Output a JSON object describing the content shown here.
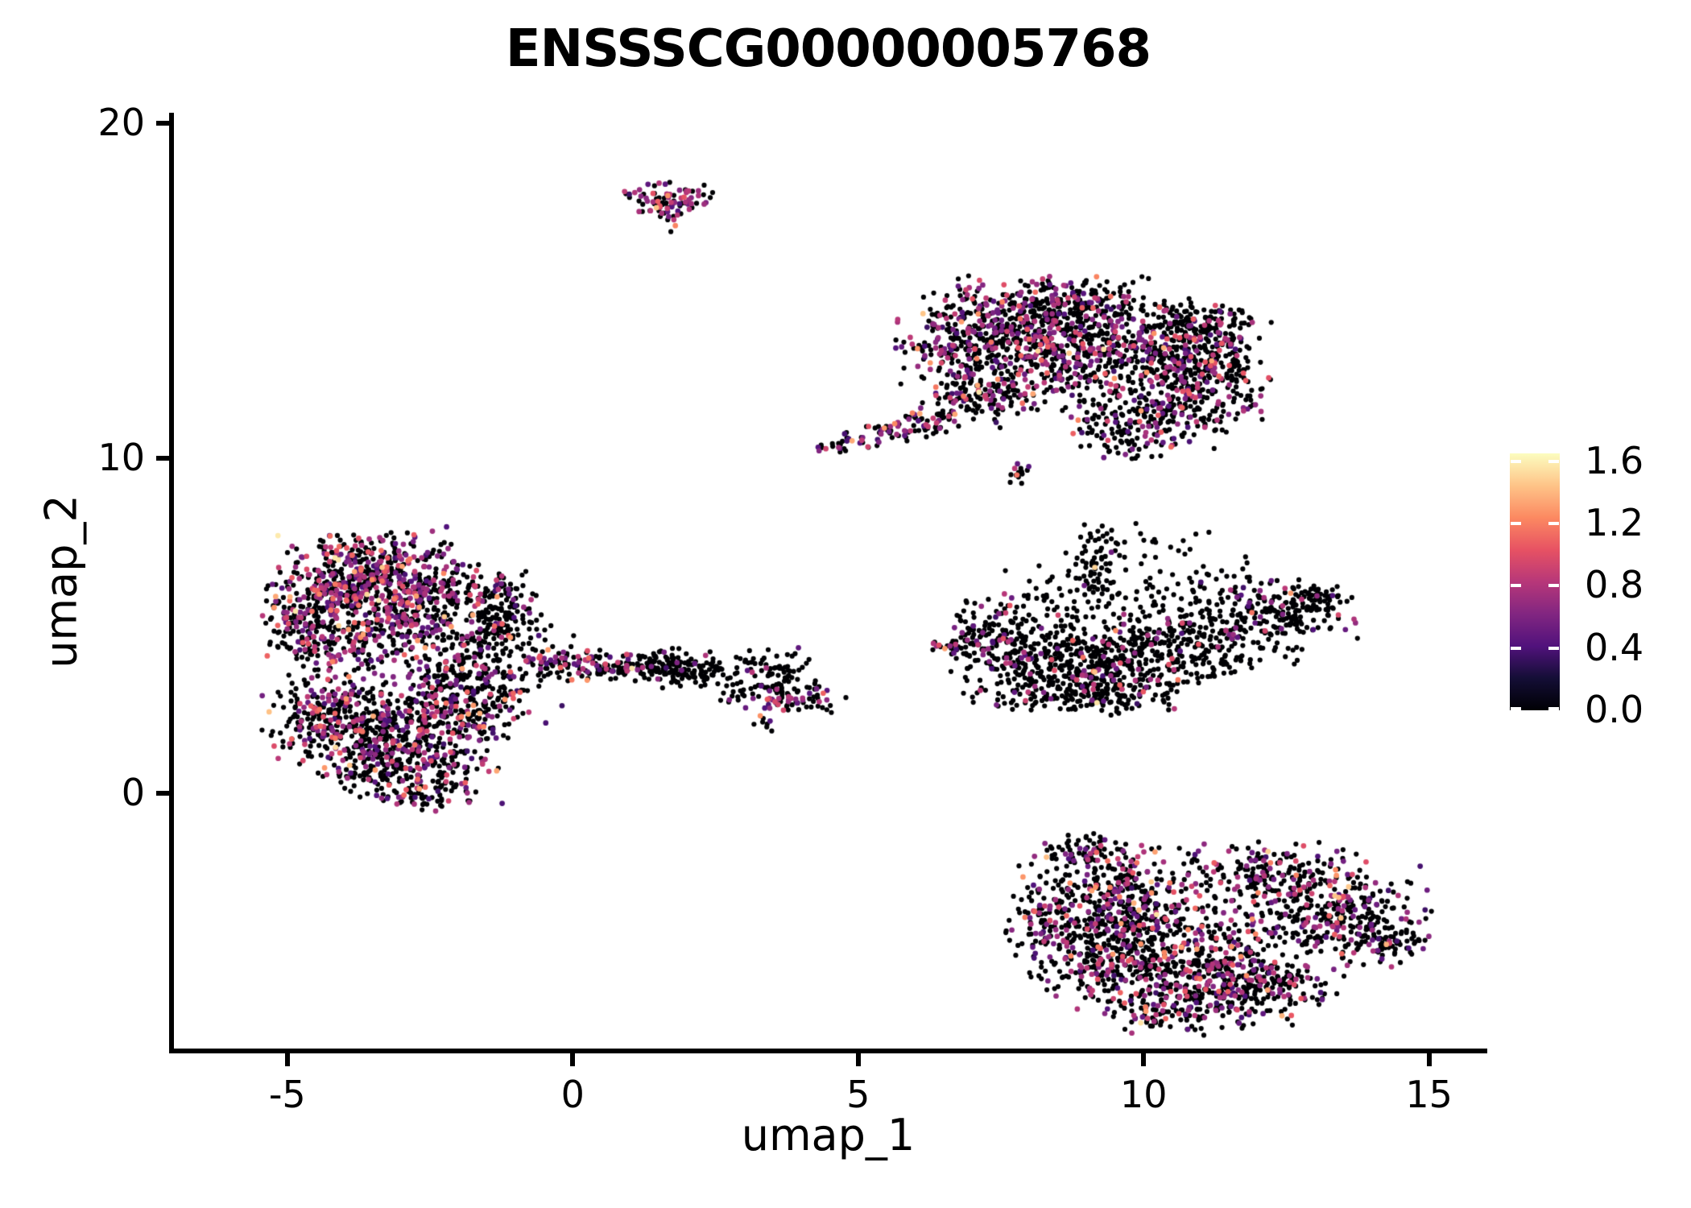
{
  "chart_data": {
    "type": "scatter",
    "title": "ENSSSCG00000005768",
    "xlabel": "umap_1",
    "ylabel": "umap_2",
    "xlim": [
      -7.07,
      16.02
    ],
    "ylim": [
      -7.69,
      20.31
    ],
    "x_ticks": [
      -5,
      0,
      5,
      10,
      15
    ],
    "y_ticks": [
      0,
      10,
      20
    ],
    "grid": false,
    "background": "#ffffff",
    "point_color_zero": "#000004",
    "point_radius_px": 3.1,
    "n_points_approx": 8500,
    "colorbar": {
      "position": "right",
      "colormap": "magma",
      "vmin": 0.0,
      "vmax": 1.65,
      "ticks": [
        0.0,
        0.4,
        0.8,
        1.2,
        1.6
      ],
      "tick_labels": [
        "0.0",
        "0.4",
        "0.8",
        "1.2",
        "1.6"
      ],
      "stops": [
        [
          0.0,
          "#000004"
        ],
        [
          0.125,
          "#140e36"
        ],
        [
          0.25,
          "#51127c"
        ],
        [
          0.375,
          "#822681"
        ],
        [
          0.5,
          "#b73779"
        ],
        [
          0.625,
          "#e75263"
        ],
        [
          0.75,
          "#fc8961"
        ],
        [
          0.875,
          "#fec488"
        ],
        [
          1.0,
          "#fcfdbf"
        ]
      ]
    },
    "clusters": [
      {
        "name": "top-small",
        "blobs": [
          [
            1.75,
            17.8,
            0.42,
            0.22,
            70,
            0.5
          ],
          [
            1.45,
            17.55,
            0.2,
            0.14,
            14,
            0.4
          ],
          [
            1.7,
            17.15,
            0.13,
            0.2,
            11,
            0.3
          ]
        ]
      },
      {
        "name": "upper-right",
        "blobs": [
          [
            7.6,
            14.05,
            0.75,
            0.62,
            320,
            0.3
          ],
          [
            8.8,
            14.55,
            0.6,
            0.42,
            190,
            0.28
          ],
          [
            8.3,
            12.95,
            0.85,
            0.7,
            340,
            0.3
          ],
          [
            10.1,
            13.2,
            0.8,
            0.72,
            320,
            0.28
          ],
          [
            11.0,
            12.45,
            0.55,
            0.75,
            210,
            0.25
          ],
          [
            10.9,
            14.15,
            0.45,
            0.33,
            90,
            0.2
          ],
          [
            11.45,
            13.4,
            0.22,
            0.5,
            55,
            0.3
          ],
          [
            9.8,
            10.95,
            0.55,
            0.45,
            150,
            0.3
          ],
          [
            7.15,
            11.95,
            0.5,
            0.5,
            140,
            0.3
          ],
          [
            6.55,
            13.2,
            0.4,
            0.5,
            90,
            0.3
          ],
          [
            10.6,
            11.4,
            0.7,
            0.5,
            90,
            0.22
          ],
          [
            4.5,
            10.35,
            0.13,
            0.1,
            9,
            0.45
          ],
          [
            5.0,
            10.5,
            0.22,
            0.15,
            22,
            0.4
          ],
          [
            5.5,
            10.75,
            0.22,
            0.15,
            24,
            0.4
          ],
          [
            6.0,
            10.95,
            0.22,
            0.16,
            26,
            0.35
          ],
          [
            6.45,
            11.2,
            0.25,
            0.2,
            30,
            0.3
          ],
          [
            7.75,
            9.55,
            0.14,
            0.14,
            13,
            0.3
          ]
        ]
      },
      {
        "name": "mid-right",
        "blobs": [
          [
            7.3,
            4.6,
            0.45,
            0.55,
            120,
            0.18
          ],
          [
            8.3,
            4.0,
            0.8,
            0.7,
            270,
            0.12
          ],
          [
            9.6,
            3.85,
            0.8,
            0.6,
            250,
            0.12
          ],
          [
            11.0,
            4.6,
            0.85,
            0.6,
            250,
            0.1
          ],
          [
            12.45,
            5.45,
            0.6,
            0.42,
            150,
            0.12
          ],
          [
            13.15,
            5.8,
            0.22,
            0.22,
            35,
            0.1
          ],
          [
            9.0,
            2.95,
            0.9,
            0.28,
            130,
            0.12
          ],
          [
            9.25,
            6.9,
            0.2,
            0.65,
            65,
            0.1
          ],
          [
            8.5,
            5.7,
            0.85,
            0.5,
            75,
            0.1
          ],
          [
            11.3,
            6.0,
            0.75,
            0.4,
            55,
            0.08
          ],
          [
            10.3,
            7.3,
            0.8,
            0.4,
            26,
            0.05
          ],
          [
            6.7,
            4.35,
            0.3,
            0.08,
            14,
            0.3
          ]
        ]
      },
      {
        "name": "left",
        "blobs": [
          [
            -3.8,
            6.3,
            0.72,
            0.62,
            360,
            0.45
          ],
          [
            -2.6,
            5.95,
            0.7,
            0.58,
            290,
            0.4
          ],
          [
            -4.6,
            5.2,
            0.42,
            0.68,
            170,
            0.4
          ],
          [
            -3.3,
            4.6,
            0.85,
            0.5,
            230,
            0.35
          ],
          [
            -1.15,
            5.5,
            0.3,
            0.55,
            105,
            0.12
          ],
          [
            -1.7,
            4.4,
            0.55,
            0.55,
            70,
            0.15
          ],
          [
            -3.2,
            1.95,
            0.9,
            0.72,
            420,
            0.3
          ],
          [
            -4.35,
            2.4,
            0.5,
            0.6,
            180,
            0.3
          ],
          [
            -2.9,
            0.75,
            0.8,
            0.48,
            210,
            0.28
          ],
          [
            -2.6,
            -0.05,
            0.4,
            0.22,
            55,
            0.25
          ],
          [
            -1.75,
            2.6,
            0.6,
            0.55,
            150,
            0.3
          ],
          [
            -1.95,
            3.5,
            0.5,
            0.38,
            90,
            0.3
          ],
          [
            -0.85,
            3.9,
            0.45,
            0.7,
            45,
            0.18
          ],
          [
            -3.3,
            7.3,
            0.6,
            0.3,
            80,
            0.45
          ]
        ]
      },
      {
        "name": "bridge-arm",
        "blobs": [
          [
            -0.35,
            3.95,
            0.3,
            0.24,
            40,
            0.5
          ],
          [
            0.3,
            3.85,
            0.4,
            0.22,
            55,
            0.45
          ],
          [
            1.0,
            3.75,
            0.35,
            0.2,
            45,
            0.25
          ],
          [
            1.8,
            3.75,
            0.4,
            0.27,
            135,
            0.06
          ],
          [
            2.45,
            3.6,
            0.2,
            0.17,
            25,
            0.12
          ]
        ]
      },
      {
        "name": "bridge-knot",
        "blobs": [
          [
            3.45,
            3.4,
            0.42,
            0.45,
            105,
            0.15
          ],
          [
            3.95,
            2.8,
            0.45,
            0.2,
            48,
            0.45
          ],
          [
            3.3,
            2.05,
            0.13,
            0.13,
            8,
            0.2
          ],
          [
            4.5,
            2.6,
            0.12,
            0.1,
            6,
            0.3
          ],
          [
            2.75,
            3.05,
            0.17,
            0.2,
            7,
            0.2
          ]
        ]
      },
      {
        "name": "bottom-right",
        "blobs": [
          [
            9.5,
            -3.3,
            0.75,
            0.85,
            380,
            0.32
          ],
          [
            9.3,
            -5.0,
            0.6,
            0.7,
            230,
            0.3
          ],
          [
            10.9,
            -4.8,
            0.9,
            0.75,
            360,
            0.3
          ],
          [
            12.3,
            -2.5,
            0.8,
            0.5,
            200,
            0.28
          ],
          [
            13.3,
            -3.7,
            0.78,
            0.7,
            290,
            0.3
          ],
          [
            14.2,
            -4.3,
            0.38,
            0.42,
            75,
            0.25
          ],
          [
            11.5,
            -6.1,
            0.8,
            0.5,
            170,
            0.3
          ],
          [
            10.2,
            -6.5,
            0.42,
            0.32,
            70,
            0.3
          ],
          [
            8.9,
            -1.8,
            0.38,
            0.28,
            70,
            0.28
          ],
          [
            8.35,
            -3.6,
            0.35,
            0.6,
            90,
            0.3
          ],
          [
            12.0,
            -5.6,
            0.7,
            0.4,
            120,
            0.28
          ]
        ]
      }
    ],
    "special_points": [
      [
        8.15,
        13.2,
        1.5
      ],
      [
        5.95,
        11.35,
        1.2
      ],
      [
        6.08,
        11.33,
        1.35
      ],
      [
        5.46,
        10.9,
        1.3
      ],
      [
        -4.1,
        5.0,
        1.5
      ],
      [
        9.95,
        -6.85,
        1.55
      ],
      [
        10.2,
        -1.75,
        1.32
      ],
      [
        7.78,
        9.5,
        1.15
      ]
    ]
  }
}
